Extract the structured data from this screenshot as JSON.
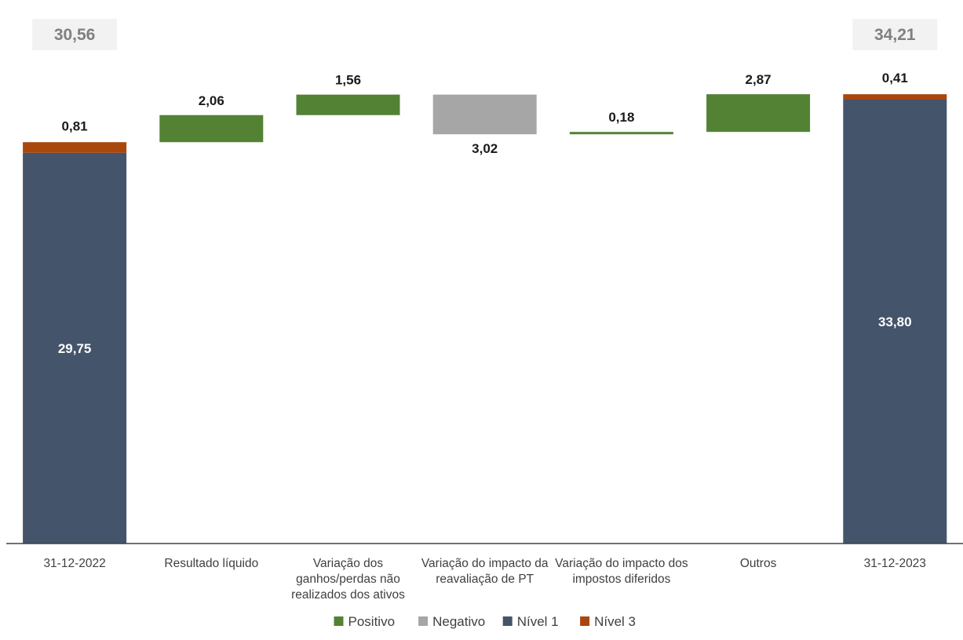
{
  "chart_data": {
    "type": "bar",
    "subtype": "waterfall",
    "categories": [
      "31-12-2022",
      "Resultado líquido",
      "Variação dos ganhos/perdas não realizados dos ativos",
      "Variação do impacto da reavaliação de PT",
      "Variação do impacto dos impostos diferidos",
      "Outros",
      "31-12-2023"
    ],
    "category_lines": [
      [
        "31-12-2022"
      ],
      [
        "Resultado líquido"
      ],
      [
        "Variação dos",
        "ganhos/perdas não",
        "realizados dos ativos"
      ],
      [
        "Variação do impacto da",
        "reavaliação de PT"
      ],
      [
        "Variação do impacto dos",
        "impostos diferidos"
      ],
      [
        "Outros"
      ],
      [
        "31-12-2023"
      ]
    ],
    "totals": [
      {
        "category": "31-12-2022",
        "nivel1": 29.75,
        "nivel3": 0.81,
        "total": 30.56,
        "nivel1_label": "29,75",
        "nivel3_label": "0,81",
        "total_label": "30,56"
      },
      {
        "category": "31-12-2023",
        "nivel1": 33.8,
        "nivel3": 0.41,
        "total": 34.21,
        "nivel1_label": "33,80",
        "nivel3_label": "0,41",
        "total_label": "34,21"
      }
    ],
    "steps": [
      {
        "category": "Resultado líquido",
        "value": 2.06,
        "label": "2,06",
        "kind": "positive"
      },
      {
        "category": "Variação dos ganhos/perdas não realizados dos ativos",
        "value": 1.56,
        "label": "1,56",
        "kind": "positive"
      },
      {
        "category": "Variação do impacto da reavaliação de PT",
        "value": -3.02,
        "label": "3,02",
        "kind": "negative"
      },
      {
        "category": "Variação do impacto dos impostos diferidos",
        "value": 0.18,
        "label": "0,18",
        "kind": "positive"
      },
      {
        "category": "Outros",
        "value": 2.87,
        "label": "2,87",
        "kind": "positive"
      }
    ],
    "ylim": [
      0,
      35.6
    ],
    "gridlines": false,
    "legend_position": "bottom-center",
    "legend": [
      {
        "key": "positive",
        "label": "Positivo",
        "color": "#548235"
      },
      {
        "key": "negative",
        "label": "Negativo",
        "color": "#a6a6a6"
      },
      {
        "key": "nivel1",
        "label": "Nível 1",
        "color": "#44546a"
      },
      {
        "key": "nivel3",
        "label": "Nível 3",
        "color": "#a9470d"
      }
    ]
  }
}
